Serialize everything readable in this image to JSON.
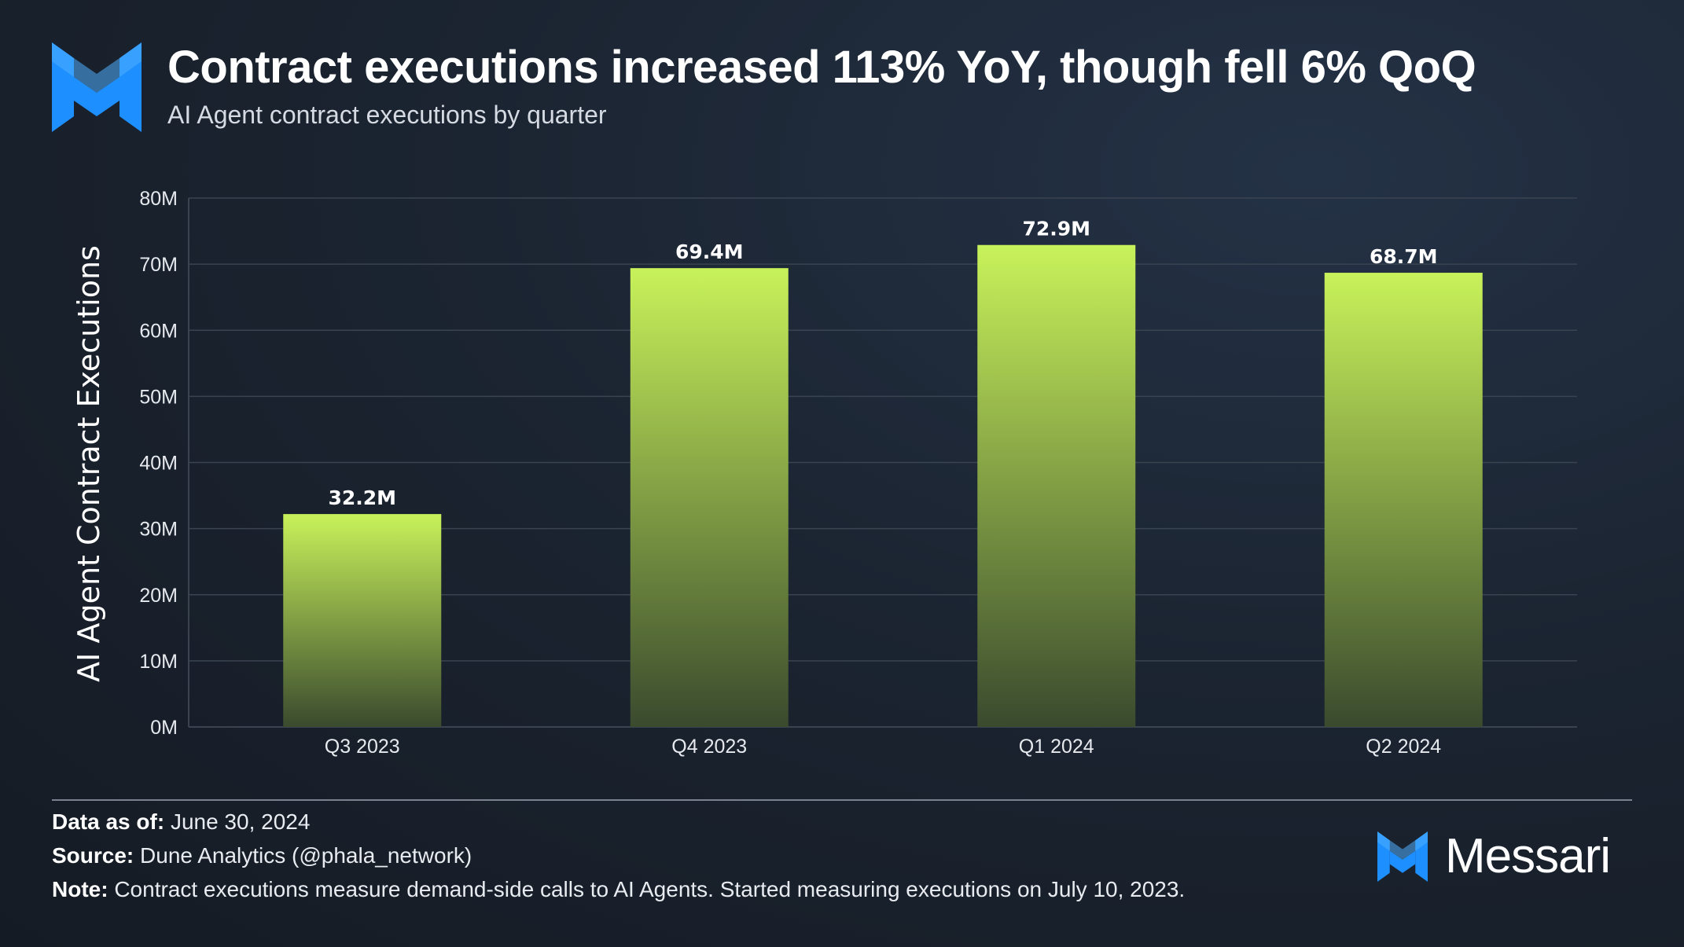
{
  "header": {
    "title": "Contract executions increased 113% YoY, though fell 6% QoQ",
    "subtitle": "AI Agent contract executions by quarter",
    "logo_icon": "messari-logo-icon"
  },
  "chart_data": {
    "type": "bar",
    "categories": [
      "Q3 2023",
      "Q4 2023",
      "Q1 2024",
      "Q2 2024"
    ],
    "values": [
      32.2,
      69.4,
      72.9,
      68.7
    ],
    "data_labels": [
      "32.2M",
      "69.4M",
      "72.9M",
      "68.7M"
    ],
    "unit": "M",
    "title": "Contract executions increased 113% YoY, though fell 6% QoQ",
    "subtitle": "AI Agent contract executions by quarter",
    "xlabel": "",
    "ylabel": "AI Agent Contract Executions",
    "ylim": [
      0,
      80
    ],
    "yticks": [
      0,
      10,
      20,
      30,
      40,
      50,
      60,
      70,
      80
    ],
    "ytick_labels": [
      "0M",
      "10M",
      "20M",
      "30M",
      "40M",
      "50M",
      "60M",
      "70M",
      "80M"
    ],
    "grid": true,
    "legend": "none",
    "colors": {
      "bar_top": "#c8f25a",
      "bar_bottom": "#3a4a2e",
      "grid": "#3a4350",
      "axis_text": "#e6e9ee"
    }
  },
  "footer": {
    "data_as_of_label": "Data as of:",
    "data_as_of_value": "June 30, 2024",
    "source_label": "Source:",
    "source_value": "Dune Analytics (@phala_network)",
    "note_label": "Note:",
    "note_value": "Contract executions measure demand-side calls to AI Agents. Started measuring executions on July 10, 2023.",
    "brand_name": "Messari",
    "brand_icon": "messari-logo-icon"
  },
  "colors": {
    "accent_blue": "#1e90ff",
    "background": "#1b2431"
  }
}
